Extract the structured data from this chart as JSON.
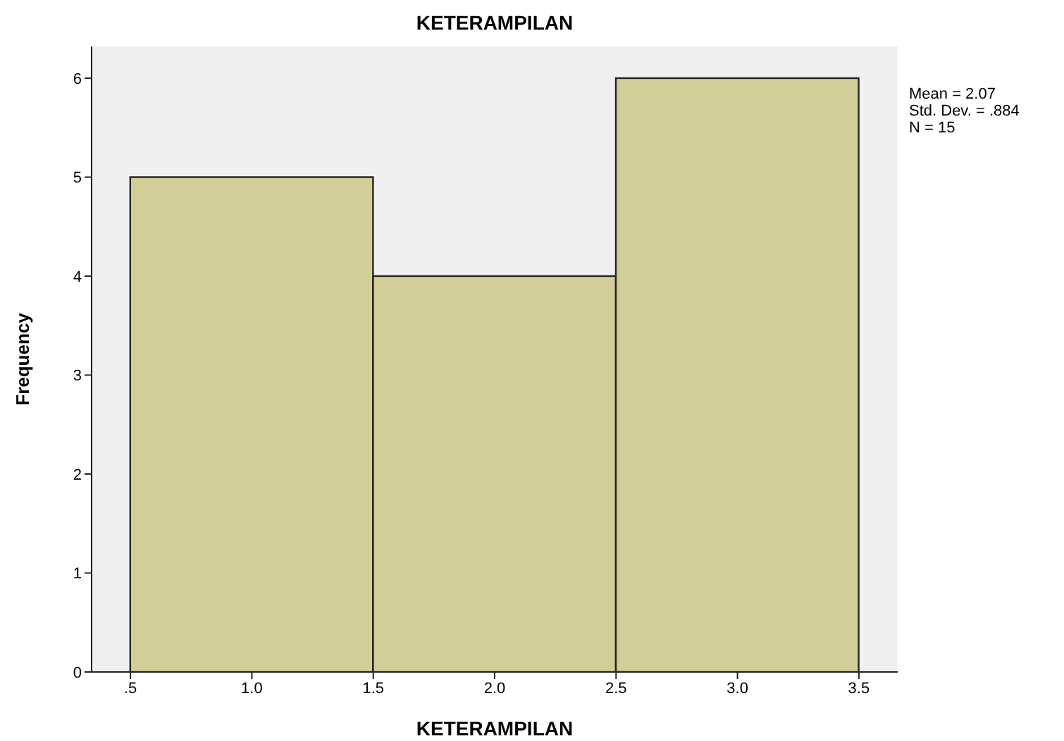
{
  "chart_data": {
    "type": "histogram",
    "title": "KETERAMPILAN",
    "xlabel": "KETERAMPILAN",
    "ylabel": "Frequency",
    "bins": [
      0.5,
      1.5,
      2.5,
      3.5
    ],
    "values": [
      5,
      4,
      6
    ],
    "color": "#d3ce97",
    "xlim": [
      0.34,
      3.66
    ],
    "xticks": [
      {
        "value": 0.5,
        "label": ".5"
      },
      {
        "value": 1,
        "label": "1.0"
      },
      {
        "value": 1.5,
        "label": "1.5"
      },
      {
        "value": 2,
        "label": "2.0"
      },
      {
        "value": 2.5,
        "label": "2.5"
      },
      {
        "value": 3,
        "label": "3.0"
      },
      {
        "value": 3.5,
        "label": "3.5"
      }
    ],
    "ylim": [
      0,
      6.32
    ],
    "yticks": [
      0,
      1,
      2,
      3,
      4,
      5,
      6
    ],
    "annotations": [
      "Mean = 2.07",
      "Std. Dev. = .884",
      "N = 15"
    ]
  }
}
